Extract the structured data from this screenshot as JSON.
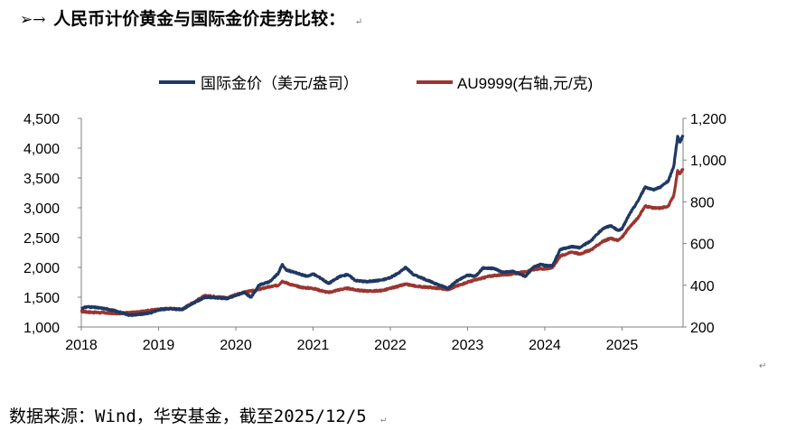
{
  "heading": {
    "bullet": "➢→",
    "title": "人民币计价黄金与国际金价走势比较：",
    "mark": "↵"
  },
  "footer": {
    "source": "数据来源：Wind，华安基金，截至2025/12/5",
    "mark": "↵"
  },
  "end_mark": "↵",
  "colors": {
    "series1": "#1f3864",
    "series2": "#9b3530",
    "axis": "#808080"
  },
  "chart_data": {
    "type": "line",
    "title": "",
    "xlabel": "",
    "ylabel": "",
    "y2label": "",
    "x_ticks": [
      "2018",
      "2019",
      "2020",
      "2021",
      "2022",
      "2023",
      "2024",
      "2025"
    ],
    "xlim": [
      2018.0,
      2025.79
    ],
    "ylim": [
      1000,
      4500
    ],
    "y_ticks": [
      "1,000",
      "1,500",
      "2,000",
      "2,500",
      "3,000",
      "3,500",
      "4,000",
      "4,500"
    ],
    "y2lim": [
      200,
      1200
    ],
    "y2_ticks": [
      "200",
      "400",
      "600",
      "800",
      "1,000",
      "1,200"
    ],
    "legend_position": "top-center",
    "series": [
      {
        "name": "国际金价（美元/盎司）",
        "axis": "left",
        "points": [
          [
            2018.0,
            1310
          ],
          [
            2018.08,
            1340
          ],
          [
            2018.2,
            1325
          ],
          [
            2018.35,
            1300
          ],
          [
            2018.55,
            1230
          ],
          [
            2018.62,
            1200
          ],
          [
            2018.75,
            1210
          ],
          [
            2018.9,
            1240
          ],
          [
            2019.0,
            1290
          ],
          [
            2019.15,
            1310
          ],
          [
            2019.3,
            1290
          ],
          [
            2019.45,
            1400
          ],
          [
            2019.6,
            1500
          ],
          [
            2019.75,
            1490
          ],
          [
            2019.9,
            1480
          ],
          [
            2020.0,
            1530
          ],
          [
            2020.1,
            1580
          ],
          [
            2020.2,
            1500
          ],
          [
            2020.3,
            1700
          ],
          [
            2020.45,
            1770
          ],
          [
            2020.55,
            1900
          ],
          [
            2020.6,
            2050
          ],
          [
            2020.65,
            1960
          ],
          [
            2020.8,
            1900
          ],
          [
            2020.92,
            1850
          ],
          [
            2021.0,
            1890
          ],
          [
            2021.1,
            1820
          ],
          [
            2021.2,
            1730
          ],
          [
            2021.35,
            1850
          ],
          [
            2021.45,
            1880
          ],
          [
            2021.55,
            1780
          ],
          [
            2021.7,
            1760
          ],
          [
            2021.9,
            1790
          ],
          [
            2022.0,
            1830
          ],
          [
            2022.1,
            1900
          ],
          [
            2022.2,
            2000
          ],
          [
            2022.3,
            1880
          ],
          [
            2022.45,
            1800
          ],
          [
            2022.6,
            1720
          ],
          [
            2022.75,
            1650
          ],
          [
            2022.85,
            1760
          ],
          [
            2023.0,
            1870
          ],
          [
            2023.1,
            1850
          ],
          [
            2023.2,
            1990
          ],
          [
            2023.35,
            1980
          ],
          [
            2023.45,
            1920
          ],
          [
            2023.6,
            1930
          ],
          [
            2023.75,
            1850
          ],
          [
            2023.85,
            2000
          ],
          [
            2023.95,
            2050
          ],
          [
            2024.0,
            2030
          ],
          [
            2024.1,
            2030
          ],
          [
            2024.2,
            2300
          ],
          [
            2024.35,
            2350
          ],
          [
            2024.45,
            2330
          ],
          [
            2024.6,
            2450
          ],
          [
            2024.75,
            2650
          ],
          [
            2024.85,
            2700
          ],
          [
            2024.95,
            2620
          ],
          [
            2025.0,
            2650
          ],
          [
            2025.1,
            2900
          ],
          [
            2025.2,
            3100
          ],
          [
            2025.3,
            3350
          ],
          [
            2025.4,
            3300
          ],
          [
            2025.5,
            3350
          ],
          [
            2025.6,
            3450
          ],
          [
            2025.67,
            3700
          ],
          [
            2025.72,
            4200
          ],
          [
            2025.75,
            4100
          ],
          [
            2025.79,
            4220
          ]
        ]
      },
      {
        "name": "AU9999(右轴,元/克)",
        "axis": "right",
        "points": [
          [
            2018.0,
            275
          ],
          [
            2018.15,
            270
          ],
          [
            2018.3,
            268
          ],
          [
            2018.45,
            265
          ],
          [
            2018.6,
            268
          ],
          [
            2018.75,
            272
          ],
          [
            2018.9,
            280
          ],
          [
            2019.0,
            285
          ],
          [
            2019.15,
            288
          ],
          [
            2019.3,
            285
          ],
          [
            2019.45,
            318
          ],
          [
            2019.6,
            350
          ],
          [
            2019.75,
            345
          ],
          [
            2019.9,
            340
          ],
          [
            2020.0,
            355
          ],
          [
            2020.15,
            370
          ],
          [
            2020.25,
            375
          ],
          [
            2020.4,
            390
          ],
          [
            2020.55,
            400
          ],
          [
            2020.6,
            420
          ],
          [
            2020.7,
            405
          ],
          [
            2020.85,
            390
          ],
          [
            2021.0,
            385
          ],
          [
            2021.1,
            375
          ],
          [
            2021.2,
            365
          ],
          [
            2021.35,
            380
          ],
          [
            2021.45,
            385
          ],
          [
            2021.6,
            375
          ],
          [
            2021.75,
            372
          ],
          [
            2021.9,
            375
          ],
          [
            2022.0,
            385
          ],
          [
            2022.1,
            395
          ],
          [
            2022.2,
            405
          ],
          [
            2022.35,
            395
          ],
          [
            2022.5,
            390
          ],
          [
            2022.65,
            385
          ],
          [
            2022.75,
            380
          ],
          [
            2022.85,
            395
          ],
          [
            2023.0,
            415
          ],
          [
            2023.15,
            430
          ],
          [
            2023.3,
            445
          ],
          [
            2023.45,
            450
          ],
          [
            2023.6,
            455
          ],
          [
            2023.75,
            465
          ],
          [
            2023.85,
            475
          ],
          [
            2023.95,
            480
          ],
          [
            2024.0,
            478
          ],
          [
            2024.1,
            485
          ],
          [
            2024.2,
            540
          ],
          [
            2024.35,
            560
          ],
          [
            2024.45,
            550
          ],
          [
            2024.6,
            570
          ],
          [
            2024.75,
            610
          ],
          [
            2024.85,
            625
          ],
          [
            2024.95,
            615
          ],
          [
            2025.0,
            630
          ],
          [
            2025.1,
            680
          ],
          [
            2025.2,
            720
          ],
          [
            2025.3,
            780
          ],
          [
            2025.4,
            770
          ],
          [
            2025.5,
            770
          ],
          [
            2025.6,
            780
          ],
          [
            2025.67,
            830
          ],
          [
            2025.72,
            950
          ],
          [
            2025.75,
            935
          ],
          [
            2025.79,
            960
          ]
        ]
      }
    ]
  }
}
